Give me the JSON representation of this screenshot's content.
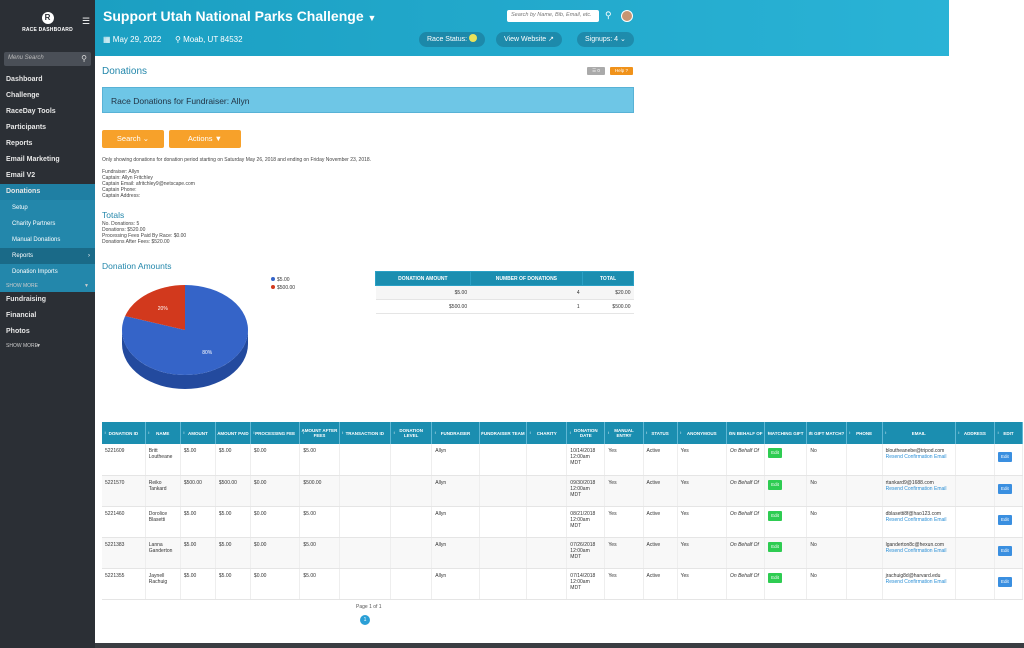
{
  "sidebar": {
    "logo_letter": "R",
    "logo_text": "RACE DASHBOARD",
    "search_placeholder": "Menu Search",
    "nav_top": [
      "Dashboard",
      "Challenge",
      "RaceDay Tools",
      "Participants",
      "Reports",
      "Email Marketing",
      "Email V2"
    ],
    "active": "Donations",
    "sub": [
      "Setup",
      "Charity Partners",
      "Manual Donations",
      "Reports",
      "Donation Imports"
    ],
    "show_more_sub": "SHOW MORE",
    "nav_bottom": [
      "Fundraising",
      "Financial",
      "Photos"
    ],
    "show_more": "SHOW MORE"
  },
  "header": {
    "title": "Support Utah National Parks Challenge",
    "search_placeholder": "Search by Name, Bib, Email, etc.",
    "date": "May 29, 2022",
    "location": "Moab, UT 84532",
    "race_status": "Race Status:",
    "view_website": "View Website",
    "signups": "Signups: 4"
  },
  "page": {
    "title": "Donations",
    "grey_btn": "0",
    "help_btn": "Help",
    "banner": "Race Donations for Fundraiser: Allyn",
    "search_btn": "Search",
    "actions_btn": "Actions",
    "note": "Only showing donations for donation period starting on Saturday May 26, 2018 and ending on Friday November 23, 2018.",
    "fundraiser_info": [
      "Fundraiser: Allyn",
      "Captain: Allyn Fritchley",
      "Captain Email: afritchley9@netscape.com",
      "Captain Phone:",
      "Captain Address:"
    ],
    "totals_title": "Totals",
    "totals": [
      "No. Donations: 5",
      "Donations: $520.00",
      "Processing Fees Paid By Race: $0.00",
      "Donations After Fees: $520.00"
    ],
    "amounts_title": "Donation Amounts"
  },
  "chart_data": {
    "type": "pie",
    "categories": [
      "$5.00",
      "$500.00"
    ],
    "values": [
      80,
      20
    ],
    "labels": [
      "80%",
      "20%"
    ],
    "colors": [
      "#3564c8",
      "#d2391d"
    ],
    "legend_position": "top-right"
  },
  "summary_table": {
    "headers": [
      "DONATION AMOUNT",
      "NUMBER OF DONATIONS",
      "TOTAL"
    ],
    "rows": [
      [
        "$5.00",
        "4",
        "$20.00"
      ],
      [
        "$500.00",
        "1",
        "$500.00"
      ]
    ]
  },
  "donations_table": {
    "headers": [
      "DONATION ID",
      "NAME",
      "AMOUNT",
      "AMOUNT PAID",
      "PROCESSING FEE",
      "AMOUNT AFTER FEES",
      "TRANSACTION ID",
      "DONATION LEVEL",
      "FUNDRAISER",
      "FUNDRAISER TEAM",
      "CHARITY",
      "DONATION DATE",
      "MANUAL ENTRY",
      "STATUS",
      "ANONYMOUS",
      "ON BEHALF OF",
      "MATCHING GIFT",
      "IS GIFT MATCH?",
      "PHONE",
      "EMAIL",
      "ADDRESS",
      "EDIT"
    ],
    "rows": [
      {
        "id": "5221609",
        "name": "Britt Loutheane",
        "amount": "$5.00",
        "paid": "$5.00",
        "fee": "$0.00",
        "after": "$5.00",
        "fundraiser": "Allyn",
        "date": "10/14/2018 12:00am MDT",
        "manual": "Yes",
        "status": "Active",
        "anon": "Yes",
        "behalf": "On Behalf Of",
        "gift_match": "No",
        "email": "bloutheanebe@tripod.com"
      },
      {
        "id": "5221570",
        "name": "Reiko Tankard",
        "amount": "$500.00",
        "paid": "$500.00",
        "fee": "$0.00",
        "after": "$500.00",
        "fundraiser": "Allyn",
        "date": "09/30/2018 12:00am MDT",
        "manual": "Yes",
        "status": "Active",
        "anon": "Yes",
        "behalf": "On Behalf Of",
        "gift_match": "No",
        "email": "rtankard9@1688.com"
      },
      {
        "id": "5221460",
        "name": "Dorolice Blasetti",
        "amount": "$5.00",
        "paid": "$5.00",
        "fee": "$0.00",
        "after": "$5.00",
        "fundraiser": "Allyn",
        "date": "08/21/2018 12:00am MDT",
        "manual": "Yes",
        "status": "Active",
        "anon": "Yes",
        "behalf": "On Behalf Of",
        "gift_match": "No",
        "email": "dblasetti8f@hao123.com"
      },
      {
        "id": "5221383",
        "name": "Lanna Ganderton",
        "amount": "$5.00",
        "paid": "$5.00",
        "fee": "$0.00",
        "after": "$5.00",
        "fundraiser": "Allyn",
        "date": "07/26/2018 12:00am MDT",
        "manual": "Yes",
        "status": "Active",
        "anon": "Yes",
        "behalf": "On Behalf Of",
        "gift_match": "No",
        "email": "lganderton8c@hexun.com"
      },
      {
        "id": "5221355",
        "name": "Jaynell Rachuig",
        "amount": "$5.00",
        "paid": "$5.00",
        "fee": "$0.00",
        "after": "$5.00",
        "fundraiser": "Allyn",
        "date": "07/14/2018 12:00am MDT",
        "manual": "Yes",
        "status": "Active",
        "anon": "Yes",
        "behalf": "On Behalf Of",
        "gift_match": "No",
        "email": "jrachuig8d@harvard.edu"
      }
    ],
    "edit_label": "Edit",
    "resend_label": "Resend Confirmation Email",
    "pager": "Page 1 of 1",
    "page_num": "1"
  }
}
